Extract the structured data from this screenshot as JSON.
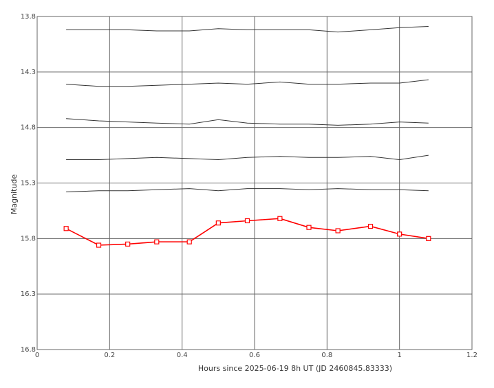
{
  "chart_data": {
    "type": "line",
    "xlabel": "Hours since 2025-06-19 8h UT (JD 2460845.83333)",
    "ylabel": "Magnitude",
    "xlim": [
      0,
      1.2
    ],
    "ylim": [
      13.8,
      16.8
    ],
    "y_inverted": true,
    "grid": true,
    "x_ticks": [
      "0",
      "0.2",
      "0.4",
      "0.6",
      "0.8",
      "1",
      "1.2"
    ],
    "y_ticks": [
      "13.8",
      "14.3",
      "14.8",
      "15.3",
      "15.8",
      "16.3",
      "16.8"
    ],
    "x": [
      0.08,
      0.17,
      0.25,
      0.33,
      0.42,
      0.5,
      0.58,
      0.67,
      0.75,
      0.83,
      0.92,
      1.0,
      1.08
    ],
    "series": [
      {
        "color": "#333333",
        "marker": "none",
        "values": [
          13.92,
          13.92,
          13.92,
          13.93,
          13.93,
          13.91,
          13.92,
          13.92,
          13.92,
          13.94,
          13.92,
          13.9,
          13.89
        ]
      },
      {
        "color": "#333333",
        "marker": "none",
        "values": [
          14.41,
          14.43,
          14.43,
          14.42,
          14.41,
          14.4,
          14.41,
          14.39,
          14.41,
          14.41,
          14.4,
          14.4,
          14.37
        ]
      },
      {
        "color": "#333333",
        "marker": "none",
        "values": [
          14.72,
          14.74,
          14.75,
          14.76,
          14.77,
          14.73,
          14.76,
          14.77,
          14.77,
          14.78,
          14.77,
          14.75,
          14.76
        ]
      },
      {
        "color": "#333333",
        "marker": "none",
        "values": [
          15.09,
          15.09,
          15.08,
          15.07,
          15.08,
          15.09,
          15.07,
          15.06,
          15.07,
          15.07,
          15.06,
          15.09,
          15.05
        ]
      },
      {
        "color": "#333333",
        "marker": "none",
        "values": [
          15.38,
          15.37,
          15.37,
          15.36,
          15.35,
          15.37,
          15.35,
          15.35,
          15.36,
          15.35,
          15.36,
          15.36,
          15.37
        ]
      },
      {
        "color": "#ff0000",
        "marker": "square",
        "values": [
          15.71,
          15.86,
          15.85,
          15.83,
          15.83,
          15.66,
          15.64,
          15.62,
          15.7,
          15.73,
          15.69,
          15.76,
          15.8
        ]
      }
    ]
  }
}
